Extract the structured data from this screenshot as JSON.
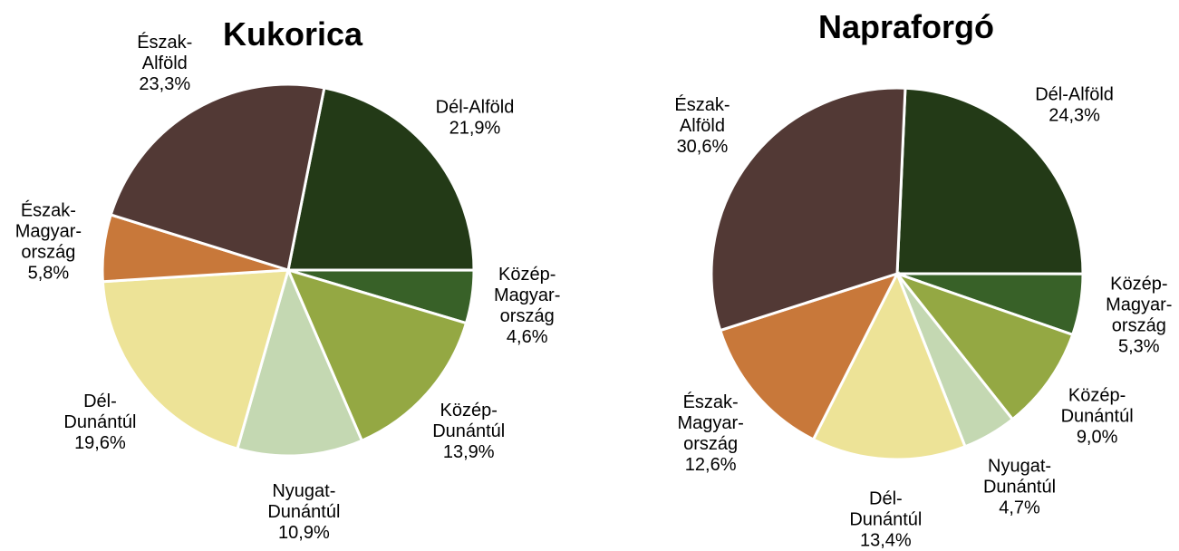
{
  "chart_data": [
    {
      "type": "pie",
      "title": "Kukorica",
      "categories": [
        "Dél-Alföld",
        "Közép-\nMagyar-\nország",
        "Közép-\nDunántúl",
        "Nyugat-\nDunántúl",
        "Dél-\nDunántúl",
        "Észak-\nMagyar-\nország",
        "Észak-\nAlföld"
      ],
      "values": [
        21.9,
        4.6,
        13.9,
        10.9,
        19.6,
        5.8,
        23.3
      ],
      "value_labels": [
        "21,9%",
        "4,6%",
        "13,9%",
        "10,9%",
        "19,6%",
        "5,8%",
        "23,3%"
      ],
      "colors": [
        "#233a17",
        "#386128",
        "#94a843",
        "#c4d8b2",
        "#ede397",
        "#c8783a",
        "#523935"
      ]
    },
    {
      "type": "pie",
      "title": "Napraforgó",
      "categories": [
        "Dél-Alföld",
        "Közép-\nMagyar-\nország",
        "Közép-\nDunántúl",
        "Nyugat-\nDunántúl",
        "Dél-\nDunántúl",
        "Észak-\nMagyar-\nország",
        "Észak-\nAlföld"
      ],
      "values": [
        24.3,
        5.3,
        9.0,
        4.7,
        13.4,
        12.6,
        30.6
      ],
      "value_labels": [
        "24,3%",
        "5,3%",
        "9,0%",
        "4,7%",
        "13,4%",
        "12,6%",
        "30,6%"
      ],
      "colors": [
        "#233a17",
        "#386128",
        "#94a843",
        "#c4d8b2",
        "#ede397",
        "#c8783a",
        "#523935"
      ]
    }
  ]
}
